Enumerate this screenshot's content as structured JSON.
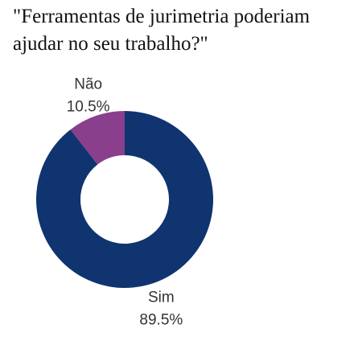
{
  "chart_data": {
    "type": "pie",
    "title_lines": [
      "\"Ferramentas de jurimetria poderiam",
      "ajudar no seu trabalho?\""
    ],
    "donut": true,
    "slices": [
      {
        "name": "Sim",
        "value": 89.5,
        "label": "89.5%",
        "color": "#0f3470"
      },
      {
        "name": "Não",
        "value": 10.5,
        "label": "10.5%",
        "color": "#893f8c"
      }
    ]
  }
}
